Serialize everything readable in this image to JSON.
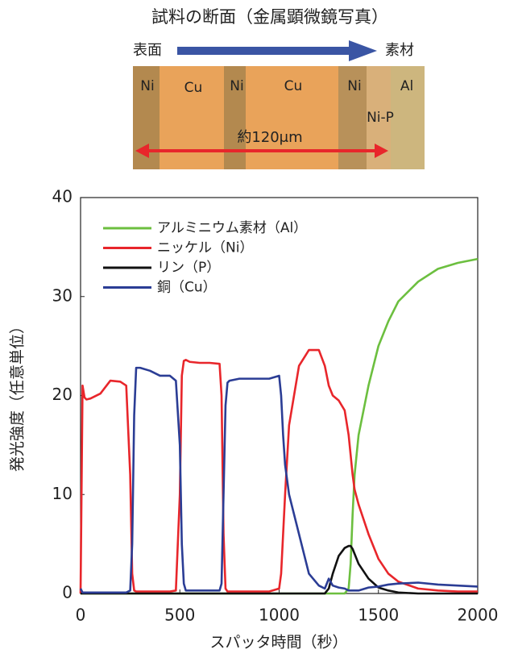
{
  "figure": {
    "title": "試料の断面（金属顕微鏡写真）",
    "surface": "表面",
    "substrate": "素材",
    "layers": [
      "Ni",
      "Cu",
      "Ni",
      "Cu",
      "Ni",
      "Al",
      "Ni-P"
    ],
    "scale": "約120μm"
  },
  "chart_data": {
    "type": "line",
    "x_label": "スパッタ時間（秒）",
    "y_label": "発光強度（任意単位）",
    "x": [
      0,
      10,
      20,
      30,
      50,
      100,
      150,
      200,
      230,
      250,
      260,
      270,
      280,
      300,
      350,
      400,
      450,
      480,
      500,
      510,
      520,
      530,
      550,
      600,
      650,
      700,
      710,
      720,
      730,
      740,
      750,
      800,
      850,
      900,
      950,
      1000,
      1010,
      1020,
      1030,
      1050,
      1100,
      1150,
      1200,
      1230,
      1250,
      1270,
      1300,
      1330,
      1350,
      1360,
      1370,
      1380,
      1400,
      1450,
      1500,
      1550,
      1600,
      1700,
      1800,
      1900,
      2000
    ],
    "series": [
      {
        "name": "アルミニウム素材（Al）",
        "color": "#6cbf3f",
        "values": [
          0,
          0,
          0,
          0,
          0,
          0,
          0,
          0,
          0,
          0,
          0,
          0,
          0,
          0,
          0,
          0,
          0,
          0,
          0,
          0,
          0,
          0,
          0,
          0,
          0,
          0,
          0,
          0,
          0,
          0,
          0,
          0,
          0,
          0,
          0,
          0,
          0,
          0,
          0,
          0,
          0,
          0,
          0,
          0,
          0,
          0,
          0,
          0,
          0.5,
          3,
          8,
          12,
          16,
          21,
          25,
          27.5,
          29.5,
          31.5,
          32.8,
          33.4,
          33.8
        ]
      },
      {
        "name": "ニッケル（Ni）",
        "color": "#e8262b",
        "values": [
          0,
          21,
          19.8,
          19.6,
          19.7,
          20.2,
          21.5,
          21.4,
          21,
          12,
          2,
          0.3,
          0.2,
          0.2,
          0.2,
          0.2,
          0.2,
          0.3,
          10,
          22,
          23.5,
          23.6,
          23.4,
          23.3,
          23.3,
          23.2,
          20,
          6,
          0.5,
          0.2,
          0.2,
          0.2,
          0.2,
          0.2,
          0.2,
          0.5,
          2,
          6,
          10,
          17,
          23,
          24.6,
          24.6,
          23,
          21,
          20,
          19.5,
          18.5,
          16,
          14,
          12,
          10.5,
          9,
          6,
          3.5,
          2,
          1.2,
          0.5,
          0.3,
          0.2,
          0.2
        ]
      },
      {
        "name": "リン（P）",
        "color": "#111111",
        "values": [
          0,
          0,
          0,
          0,
          0,
          0,
          0,
          0,
          0,
          0,
          0,
          0,
          0,
          0,
          0,
          0,
          0,
          0,
          0,
          0,
          0,
          0,
          0,
          0,
          0,
          0,
          0,
          0,
          0,
          0,
          0,
          0,
          0,
          0,
          0,
          0,
          0,
          0,
          0,
          0,
          0,
          0,
          0,
          0,
          0.5,
          2,
          3.8,
          4.6,
          4.8,
          4.8,
          4.5,
          4,
          3,
          1.5,
          0.6,
          0.3,
          0.1,
          0,
          0,
          0,
          0
        ]
      },
      {
        "name": "銅（Cu）",
        "color": "#2b3d95",
        "values": [
          0.5,
          0.1,
          0.1,
          0.1,
          0.1,
          0.1,
          0.1,
          0.1,
          0.1,
          0.3,
          5,
          18,
          22.8,
          22.8,
          22.5,
          22,
          22,
          21.5,
          15,
          5,
          1,
          0.3,
          0.3,
          0.3,
          0.3,
          0.3,
          1,
          10,
          19,
          21.3,
          21.5,
          21.7,
          21.7,
          21.7,
          21.7,
          22,
          20,
          16,
          13,
          10,
          6,
          2,
          0.8,
          0.5,
          1.5,
          0.8,
          0.6,
          0.5,
          0.3,
          0.3,
          0.3,
          0.3,
          0.3,
          0.6,
          0.7,
          0.9,
          1,
          1.1,
          0.9,
          0.8,
          0.7
        ]
      }
    ],
    "xlim": [
      0,
      2000
    ],
    "xticks": [
      0,
      500,
      1000,
      1500,
      2000
    ],
    "ylim": [
      0,
      40
    ],
    "yticks": [
      0,
      10,
      20,
      30,
      40
    ],
    "legend": "upper left"
  }
}
